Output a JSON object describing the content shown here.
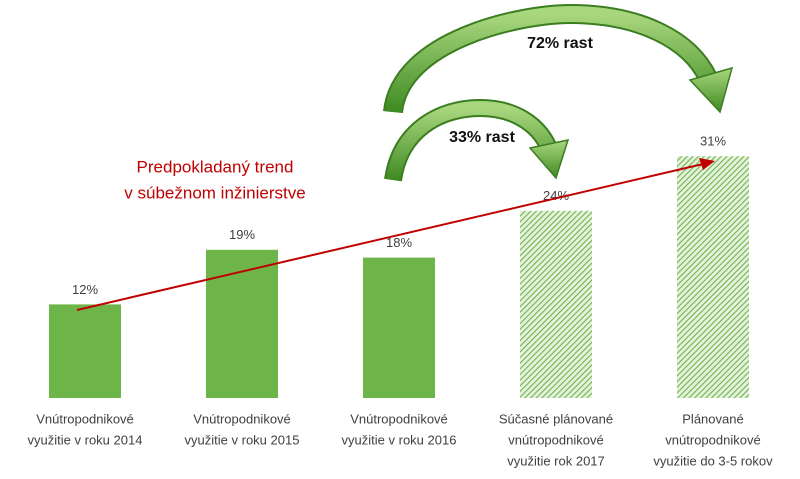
{
  "chart_data": {
    "type": "bar",
    "categories": [
      [
        "Vnútropodnikové",
        "využitie v roku 2014"
      ],
      [
        "Vnútropodnikové",
        "využitie v roku 2015"
      ],
      [
        "Vnútropodnikové",
        "využitie v roku 2016"
      ],
      [
        "Súčasné plánované",
        "vnútropodnikové",
        "využitie rok 2017"
      ],
      [
        "Plánované",
        "vnútropodnikové",
        "využitie do 3-5 rokov"
      ]
    ],
    "values": [
      12,
      19,
      18,
      24,
      31
    ],
    "value_labels": [
      "12%",
      "19%",
      "18%",
      "24%",
      "31%"
    ],
    "hatched": [
      false,
      false,
      false,
      true,
      true
    ],
    "color": "#6db549",
    "ylim": [
      0,
      40
    ],
    "annotations": {
      "trend": [
        "Predpokladaný trend",
        "v súbežnom inžinierstve"
      ],
      "growth_small": "33% rast",
      "growth_large": "72% rast"
    }
  }
}
